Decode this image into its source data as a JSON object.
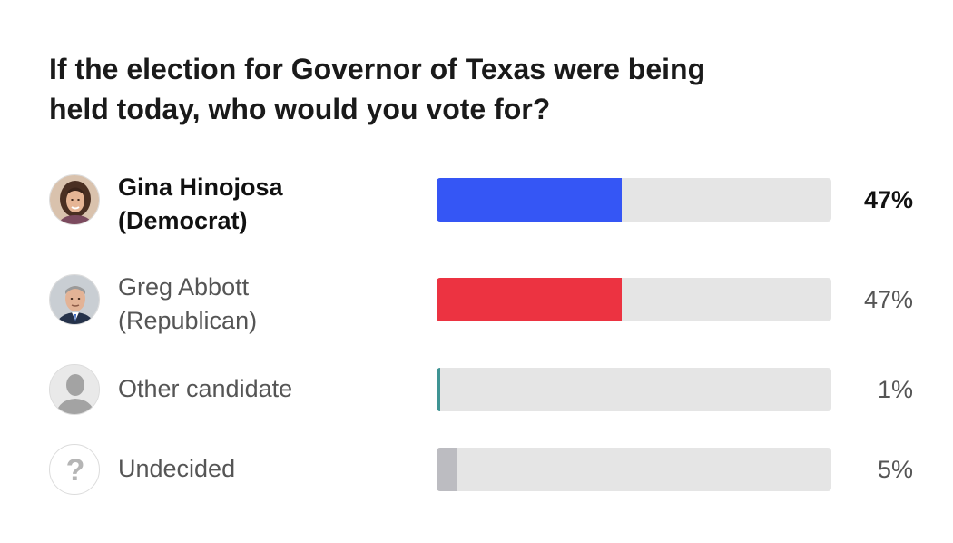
{
  "chart_data": {
    "type": "bar",
    "orientation": "horizontal",
    "title": "If the election for Governor of Texas were being held today, who would you vote for?",
    "xlim": [
      0,
      100
    ],
    "categories": [
      "Gina Hinojosa (Democrat)",
      "Greg Abbott (Republican)",
      "Other candidate",
      "Undecided"
    ],
    "values": [
      47,
      47,
      1,
      5
    ],
    "rows": [
      {
        "name_line1": "Gina Hinojosa",
        "name_line2": "(Democrat)",
        "value": 47,
        "value_label": "47%",
        "color": "#3556f5",
        "leader": true,
        "avatar_icon": "candidate-photo-icon"
      },
      {
        "name_line1": "Greg Abbott",
        "name_line2": "(Republican)",
        "value": 47,
        "value_label": "47%",
        "color": "#ec3341",
        "leader": false,
        "avatar_icon": "candidate-photo-icon"
      },
      {
        "name_line1": "Other candidate",
        "name_line2": "",
        "value": 1,
        "value_label": "1%",
        "color": "#3f9494",
        "leader": false,
        "avatar_icon": "person-silhouette-icon"
      },
      {
        "name_line1": "Undecided",
        "name_line2": "",
        "value": 5,
        "value_label": "5%",
        "color": "#bcbcc1",
        "leader": false,
        "avatar_icon": "question-mark-icon"
      }
    ],
    "colors": {
      "track": "#e5e5e5"
    },
    "grid": false,
    "legend": "none"
  }
}
